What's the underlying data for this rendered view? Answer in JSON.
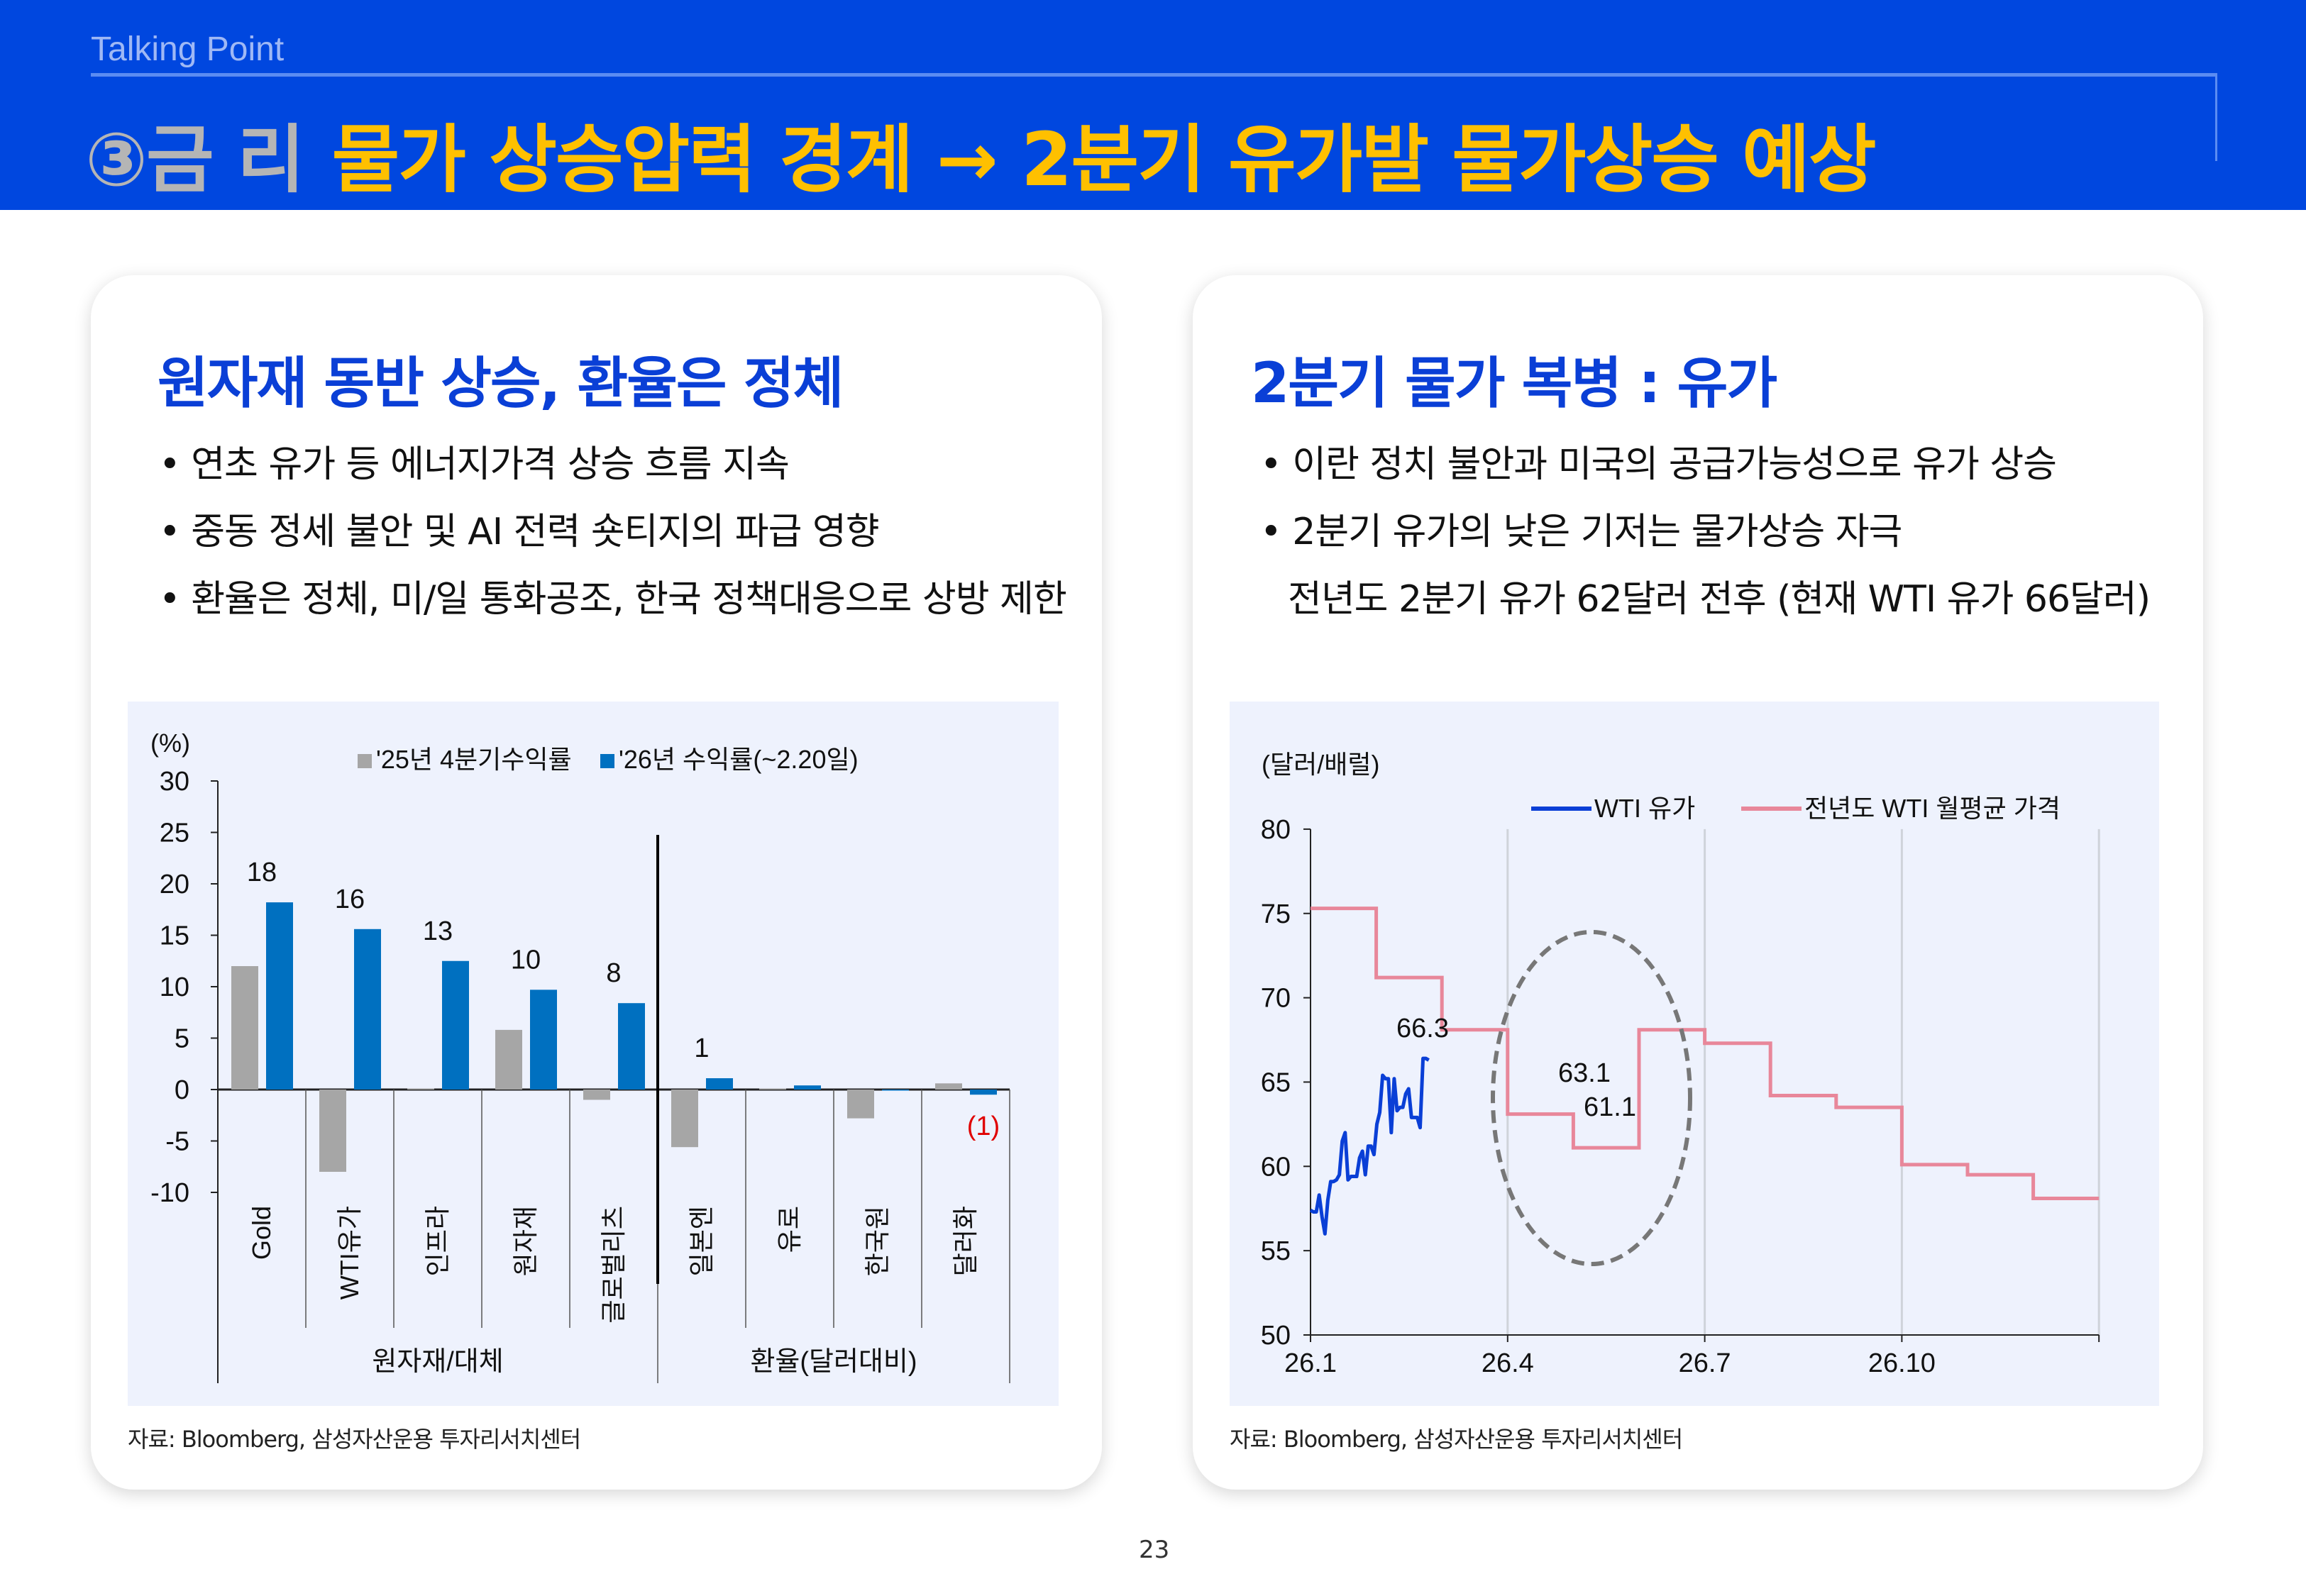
{
  "header": {
    "kicker": "Talking Point",
    "section": "③금 리",
    "title": "물가 상승압력 경계 → 2분기 유가발 물가상승 예상"
  },
  "left_card": {
    "heading": "원자재 동반 상승, 환율은 정체",
    "bullets": [
      "• 연초 유가 등 에너지가격 상승 흐름 지속",
      "• 중동 정세 불안 및 AI 전력 숏티지의 파급 영향",
      "• 환율은 정체, 미/일 통화공조, 한국 정책대응으로 상방 제한"
    ],
    "source": "자료: Bloomberg, 삼성자산운용 투자리서치센터"
  },
  "right_card": {
    "heading": "2분기 물가 복병 : 유가",
    "bullets": [
      "• 이란 정치 불안과 미국의 공급가능성으로 유가 상승",
      "• 2분기 유가의 낮은 기저는 물가상승 자극",
      "전년도 2분기 유가 62달러 전후 (현재 WTI 유가 66달러)"
    ],
    "source": "자료: Bloomberg, 삼성자산운용 투자리서치센터"
  },
  "page_number": "23",
  "chart_data": [
    {
      "type": "bar",
      "ylabel": "(%)",
      "ylim": [
        -10,
        30
      ],
      "yticks": [
        "30",
        "25",
        "20",
        "15",
        "10",
        "5",
        "0",
        "-5",
        "-10"
      ],
      "categories": [
        "Gold",
        "WTI유가",
        "인프라",
        "원자재",
        "글로벌리츠",
        "일본엔",
        "유로",
        "한국원",
        "달러화"
      ],
      "groups": [
        {
          "label": "원자재/대체",
          "count": 5
        },
        {
          "label": "환율(달러대비)",
          "count": 4
        }
      ],
      "series": [
        {
          "name": "'25년 4분기수익률",
          "color": "#a6a6a6",
          "values": [
            12.0,
            -8.0,
            0.1,
            5.8,
            -1.0,
            -5.6,
            0.1,
            -2.8,
            0.6
          ]
        },
        {
          "name": "'26년 수익률(~2.20일)",
          "color": "#0070c0",
          "values": [
            18.2,
            15.6,
            12.5,
            9.7,
            8.4,
            1.1,
            0.4,
            0.0,
            -0.5
          ]
        }
      ],
      "data_labels": [
        "18",
        "16",
        "13",
        "10",
        "8",
        "1",
        "",
        "",
        "(1)"
      ],
      "negative_label_color": "#e00000",
      "legend": "top",
      "grid": false
    },
    {
      "type": "line",
      "ylabel": "(달러/배럴)",
      "ylim": [
        50,
        80
      ],
      "yticks": [
        "80",
        "75",
        "70",
        "65",
        "60",
        "55",
        "50"
      ],
      "xticks": [
        "26.1",
        "26.4",
        "26.7",
        "26.10"
      ],
      "legend": "top-right",
      "series": [
        {
          "name": "WTI 유가",
          "color": "#0a3fd6",
          "values": [
            57.4,
            57.3,
            57.3,
            58.3,
            57.0,
            56.0,
            58.0,
            59.1,
            59.1,
            59.2,
            59.5,
            61.5,
            62.0,
            59.2,
            59.4,
            59.4,
            59.4,
            60.5,
            60.9,
            59.5,
            61.2,
            61.2,
            60.7,
            62.5,
            63.2,
            65.4,
            65.2,
            65.2,
            62.0,
            65.2,
            63.3,
            63.5,
            63.5,
            64.3,
            64.6,
            62.9,
            62.9,
            62.9,
            62.3,
            66.4,
            66.4,
            66.3
          ]
        },
        {
          "name": "전년도 WTI 월평균 가격",
          "color": "#e8879a",
          "months": [
            "1",
            "2",
            "3",
            "4",
            "5",
            "6",
            "7",
            "8",
            "9",
            "10",
            "11",
            "12"
          ],
          "values": [
            75.3,
            71.2,
            68.1,
            63.1,
            61.1,
            68.1,
            67.3,
            64.2,
            63.5,
            60.1,
            59.5,
            58.1
          ]
        }
      ],
      "annotations": [
        "66.3",
        "63.1",
        "61.1"
      ],
      "grid": "vertical"
    }
  ]
}
